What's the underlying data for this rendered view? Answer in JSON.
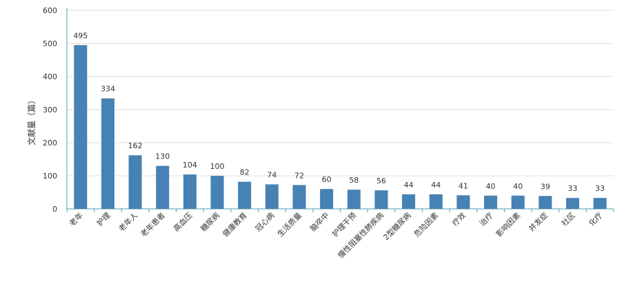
{
  "chart_data": {
    "type": "bar",
    "y_label": "文献量（篇）",
    "categories": [
      "老年",
      "护理",
      "老年人",
      "老年患者",
      "高血压",
      "糖尿病",
      "健康教育",
      "冠心病",
      "生活质量",
      "脑卒中",
      "护理干预",
      "慢性阻塞性肺疾病",
      "2型糖尿病",
      "危险因素",
      "疗效",
      "治疗",
      "影响因素",
      "并发症",
      "社区",
      "化疗"
    ],
    "values": [
      495,
      334,
      162,
      130,
      104,
      100,
      82,
      74,
      72,
      60,
      58,
      56,
      44,
      44,
      41,
      40,
      40,
      39,
      33,
      33
    ],
    "color": "#4682b4",
    "ylim": [
      0,
      600
    ],
    "yticks": [
      0,
      100,
      200,
      300,
      400,
      500,
      600
    ],
    "grid": true
  }
}
